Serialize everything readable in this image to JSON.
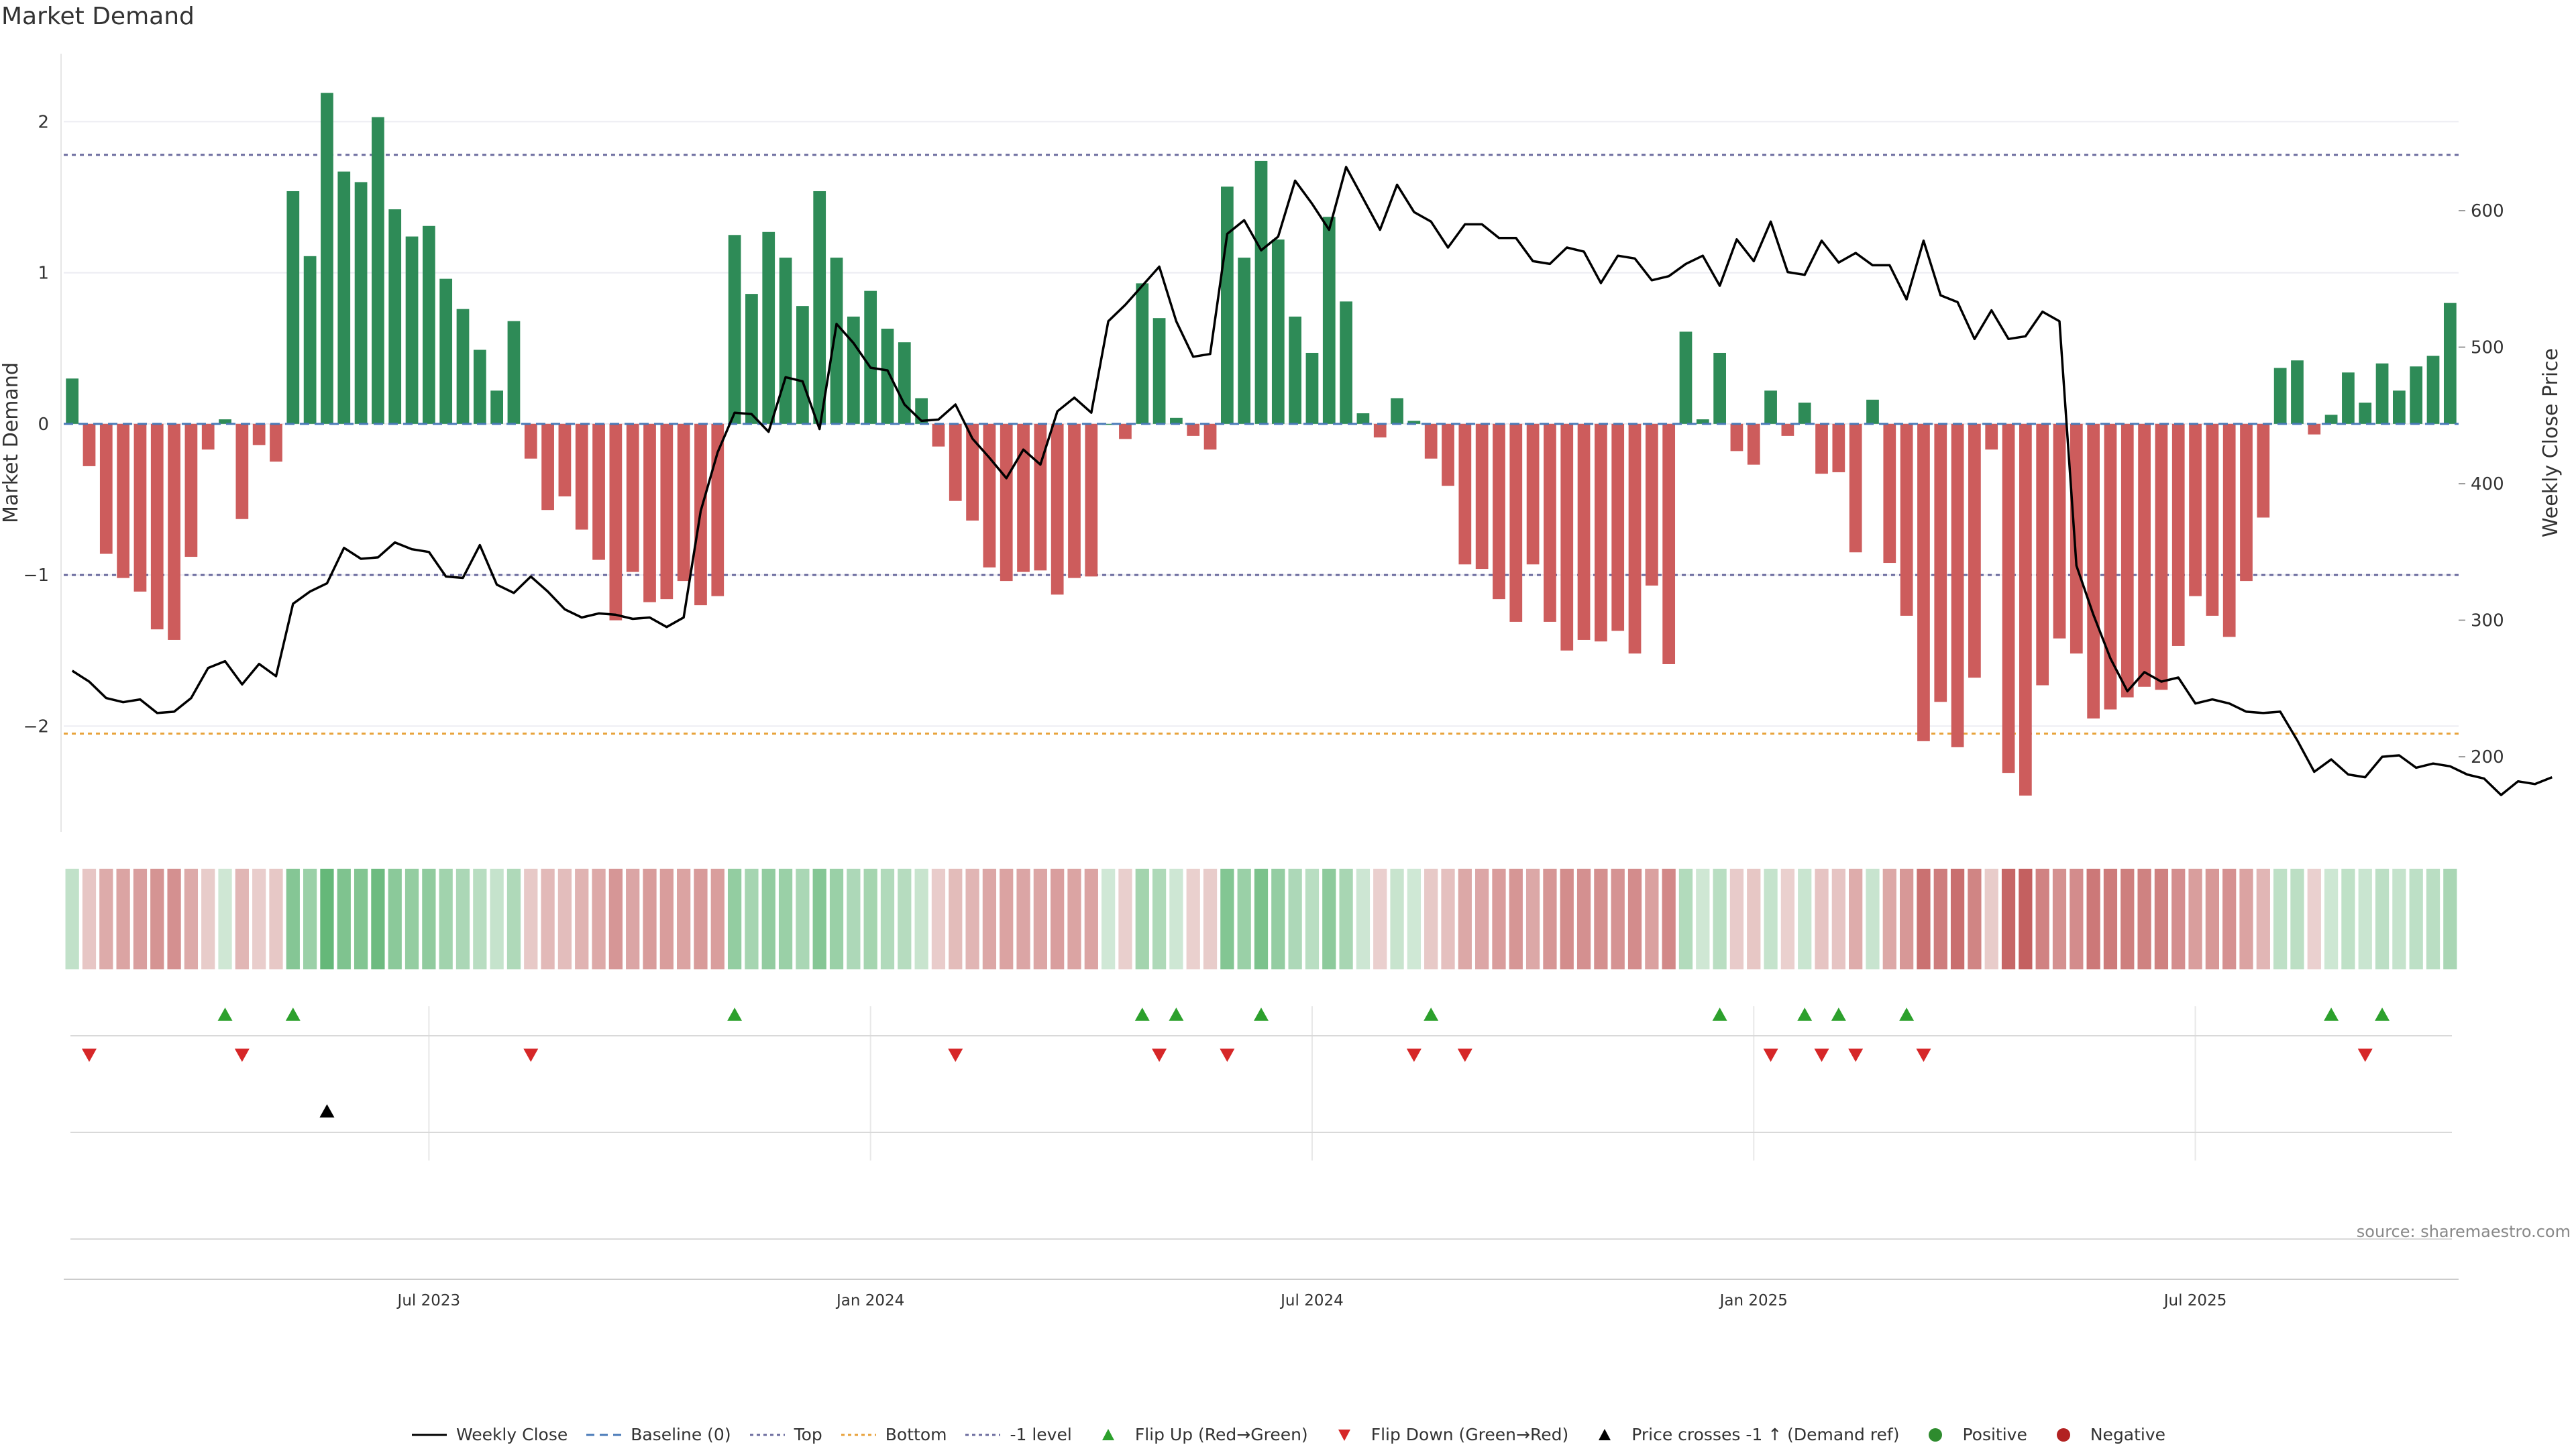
{
  "chart_data": {
    "type": "bar",
    "title": "Market Demand",
    "source": "source: sharemaestro.com",
    "ylabel": "Market Demand",
    "ylabel_right": "Weekly Close Price",
    "ylim": [
      -2.7,
      2.45
    ],
    "ylim_right": [
      145,
      715
    ],
    "yticks": [
      "2",
      "1",
      "0",
      "−1",
      "−2"
    ],
    "yticks_right": [
      "600",
      "500",
      "400",
      "300",
      "200"
    ],
    "levels": {
      "top": 1.78,
      "bottom": -2.05,
      "minus_one": -1.0,
      "baseline": 0
    },
    "xtick_labels": [
      "Jul 2023",
      "Jan 2024",
      "Jul 2024",
      "Jan 2025",
      "Jul 2025"
    ],
    "colors": {
      "positive": "#2e8b57",
      "negative": "#cd5c5c",
      "price": "#000000",
      "top": "#6b6b9e",
      "bottom": "#e8a23a",
      "baseline": "#4a7ab8",
      "flip_up": "#2ca02c",
      "flip_down": "#d62728",
      "cross": "#000000",
      "pos_dot": "#2e8b2e",
      "neg_dot": "#b22222"
    },
    "demand": [
      0.3,
      -0.28,
      -0.86,
      -1.02,
      -1.11,
      -1.36,
      -1.43,
      -0.88,
      -0.17,
      0.03,
      -0.63,
      -0.14,
      -0.25,
      1.54,
      1.11,
      2.19,
      1.67,
      1.6,
      2.03,
      1.42,
      1.24,
      1.31,
      0.96,
      0.76,
      0.49,
      0.22,
      0.68,
      -0.23,
      -0.57,
      -0.48,
      -0.7,
      -0.9,
      -1.3,
      -0.98,
      -1.18,
      -1.16,
      -1.04,
      -1.2,
      -1.14,
      1.25,
      0.86,
      1.27,
      1.1,
      0.78,
      1.54,
      1.1,
      0.71,
      0.88,
      0.63,
      0.54,
      0.17,
      -0.15,
      -0.51,
      -0.64,
      -0.95,
      -1.04,
      -0.98,
      -0.97,
      -1.13,
      -1.02,
      -1.01,
      0.0,
      -0.1,
      0.93,
      0.7,
      0.04,
      -0.08,
      -0.17,
      1.57,
      1.1,
      1.74,
      1.22,
      0.71,
      0.47,
      1.37,
      0.81,
      0.07,
      -0.09,
      0.17,
      0.02,
      -0.23,
      -0.41,
      -0.93,
      -0.96,
      -1.16,
      -1.31,
      -0.93,
      -1.31,
      -1.5,
      -1.43,
      -1.44,
      -1.37,
      -1.52,
      -1.07,
      -1.59,
      0.61,
      0.03,
      0.47,
      -0.18,
      -0.27,
      0.22,
      -0.08,
      0.14,
      -0.33,
      -0.32,
      -0.85,
      0.16,
      -0.92,
      -1.27,
      -2.1,
      -1.84,
      -2.14,
      -1.68,
      -0.17,
      -2.31,
      -2.46,
      -1.73,
      -1.42,
      -1.52,
      -1.95,
      -1.89,
      -1.81,
      -1.74,
      -1.76,
      -1.47,
      -1.14,
      -1.27,
      -1.41,
      -1.04,
      -0.62,
      0.37,
      0.42,
      -0.07,
      0.06,
      0.34,
      0.14,
      0.4,
      0.22,
      0.38,
      0.45,
      0.8
    ],
    "weekly_close": [
      263,
      255,
      243,
      240,
      242,
      232,
      233,
      243,
      265,
      270,
      253,
      268,
      259,
      312,
      321,
      327,
      353,
      345,
      346,
      357,
      352,
      350,
      332,
      331,
      355,
      326,
      320,
      332,
      321,
      308,
      302,
      305,
      304,
      301,
      302,
      295,
      302,
      380,
      423,
      452,
      451,
      438,
      478,
      475,
      440,
      517,
      503,
      485,
      483,
      458,
      446,
      447,
      458,
      433,
      419,
      404,
      425,
      414,
      453,
      463,
      452,
      519,
      531,
      545,
      559,
      519,
      493,
      495,
      583,
      593,
      571,
      581,
      622,
      605,
      586,
      632,
      609,
      586,
      619,
      599,
      592,
      573,
      590,
      590,
      580,
      580,
      563,
      561,
      573,
      570,
      547,
      567,
      565,
      549,
      552,
      561,
      567,
      545,
      579,
      563,
      592,
      555,
      553,
      578,
      562,
      569,
      560,
      560,
      535,
      578,
      538,
      533,
      506,
      527,
      506,
      508,
      526,
      519,
      340,
      304,
      272,
      248,
      262,
      255,
      258,
      239,
      242,
      239,
      233,
      232,
      233,
      212,
      189,
      198,
      187,
      185,
      200,
      201,
      192,
      195,
      193,
      187,
      184,
      172,
      182,
      180,
      185
    ],
    "flip_up_weeks": [
      9,
      13,
      39,
      63,
      65,
      70,
      80,
      97,
      102,
      104,
      108,
      133,
      136
    ],
    "flip_down_weeks": [
      1,
      10,
      27,
      52,
      64,
      68,
      79,
      82,
      100,
      103,
      105,
      109,
      135
    ],
    "cross_weeks": [
      15
    ],
    "legend": [
      {
        "key": "price",
        "label": "Weekly Close"
      },
      {
        "key": "baseline",
        "label": "Baseline (0)"
      },
      {
        "key": "top",
        "label": "Top"
      },
      {
        "key": "bottom",
        "label": "Bottom"
      },
      {
        "key": "minus_one",
        "label": "-1 level"
      },
      {
        "key": "flip_up",
        "label": "Flip Up (Red→Green)"
      },
      {
        "key": "flip_down",
        "label": "Flip Down (Green→Red)"
      },
      {
        "key": "cross",
        "label": "Price crosses -1 ↑ (Demand ref)"
      },
      {
        "key": "pos_dot",
        "label": "Positive"
      },
      {
        "key": "neg_dot",
        "label": "Negative"
      }
    ]
  }
}
